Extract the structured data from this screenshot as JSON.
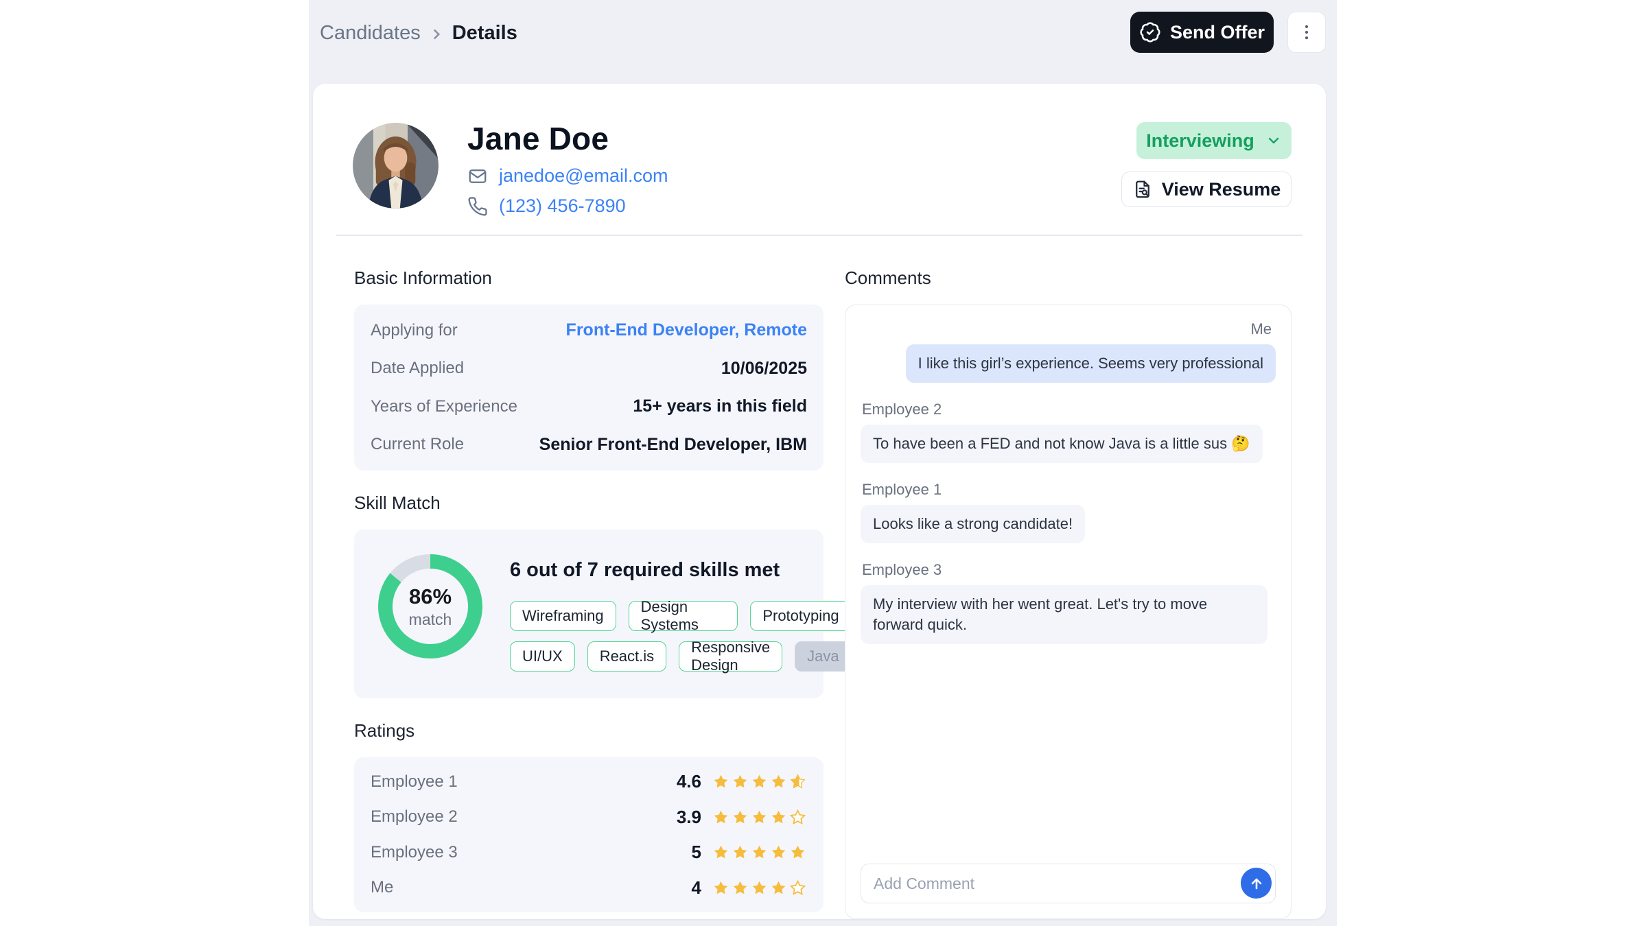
{
  "breadcrumb": {
    "parent": "Candidates",
    "current": "Details"
  },
  "header": {
    "send_offer_label": "Send Offer"
  },
  "profile": {
    "name": "Jane Doe",
    "email": "janedoe@email.com",
    "phone": "(123) 456-7890",
    "status": "Interviewing",
    "view_resume_label": "View Resume"
  },
  "basic_info": {
    "title": "Basic Information",
    "rows": [
      {
        "label": "Applying for",
        "value": "Front-End Developer, Remote"
      },
      {
        "label": "Date Applied",
        "value": "10/06/2025"
      },
      {
        "label": "Years of Experience",
        "value": "15+ years in this field"
      },
      {
        "label": "Current Role",
        "value": "Senior Front-End Developer, IBM"
      }
    ]
  },
  "skill_match": {
    "title": "Skill Match",
    "percent": 86,
    "percent_label": "86%",
    "match_label": "match",
    "headline": "6 out of 7 required skills met",
    "skills_met": [
      "Wireframing",
      "Design Systems",
      "Prototyping",
      "UI/UX",
      "React.is",
      "Responsive Design"
    ],
    "skills_missing": [
      "Java"
    ]
  },
  "ratings": {
    "title": "Ratings",
    "rows": [
      {
        "name": "Employee 1",
        "value": "4.6",
        "stars": 4.6,
        "star_states": [
          "full",
          "full",
          "full",
          "full",
          "half"
        ]
      },
      {
        "name": "Employee 2",
        "value": "3.9",
        "stars": 3.9,
        "star_states": [
          "full",
          "full",
          "full",
          "full",
          "empty"
        ]
      },
      {
        "name": "Employee 3",
        "value": "5",
        "stars": 5,
        "star_states": [
          "full",
          "full",
          "full",
          "full",
          "full"
        ]
      },
      {
        "name": "Me",
        "value": "4",
        "stars": 4,
        "star_states": [
          "full",
          "full",
          "full",
          "full",
          "empty"
        ]
      }
    ]
  },
  "comments": {
    "title": "Comments",
    "messages": [
      {
        "author": "Me",
        "side": "right",
        "text": "I like this girl’s experience. Seems very professional"
      },
      {
        "author": "Employee 2",
        "side": "left",
        "text": "To have been a FED and not know Java is a little sus",
        "emoji": "🤔"
      },
      {
        "author": "Employee 1",
        "side": "left",
        "text": "Looks like a strong candidate!"
      },
      {
        "author": "Employee 3",
        "side": "left",
        "text": "My interview with her went great. Let's try to move forward quick."
      }
    ],
    "input_placeholder": "Add Comment"
  },
  "colors": {
    "accent_blue": "#3b82f6",
    "status_green_bg": "#c7f0db",
    "status_green_text": "#13a05e",
    "donut_green": "#3ecf8e",
    "donut_track": "#d8dce4",
    "chip_border_green": "#52d693",
    "star_amber": "#f5bc3d",
    "send_offer_bg": "#10151e",
    "me_bubble_bg": "#dbe5fc",
    "employee_bubble_bg": "#f3f5fa",
    "send_button_blue": "#2f6ce8",
    "app_background": "#eef0f5"
  }
}
